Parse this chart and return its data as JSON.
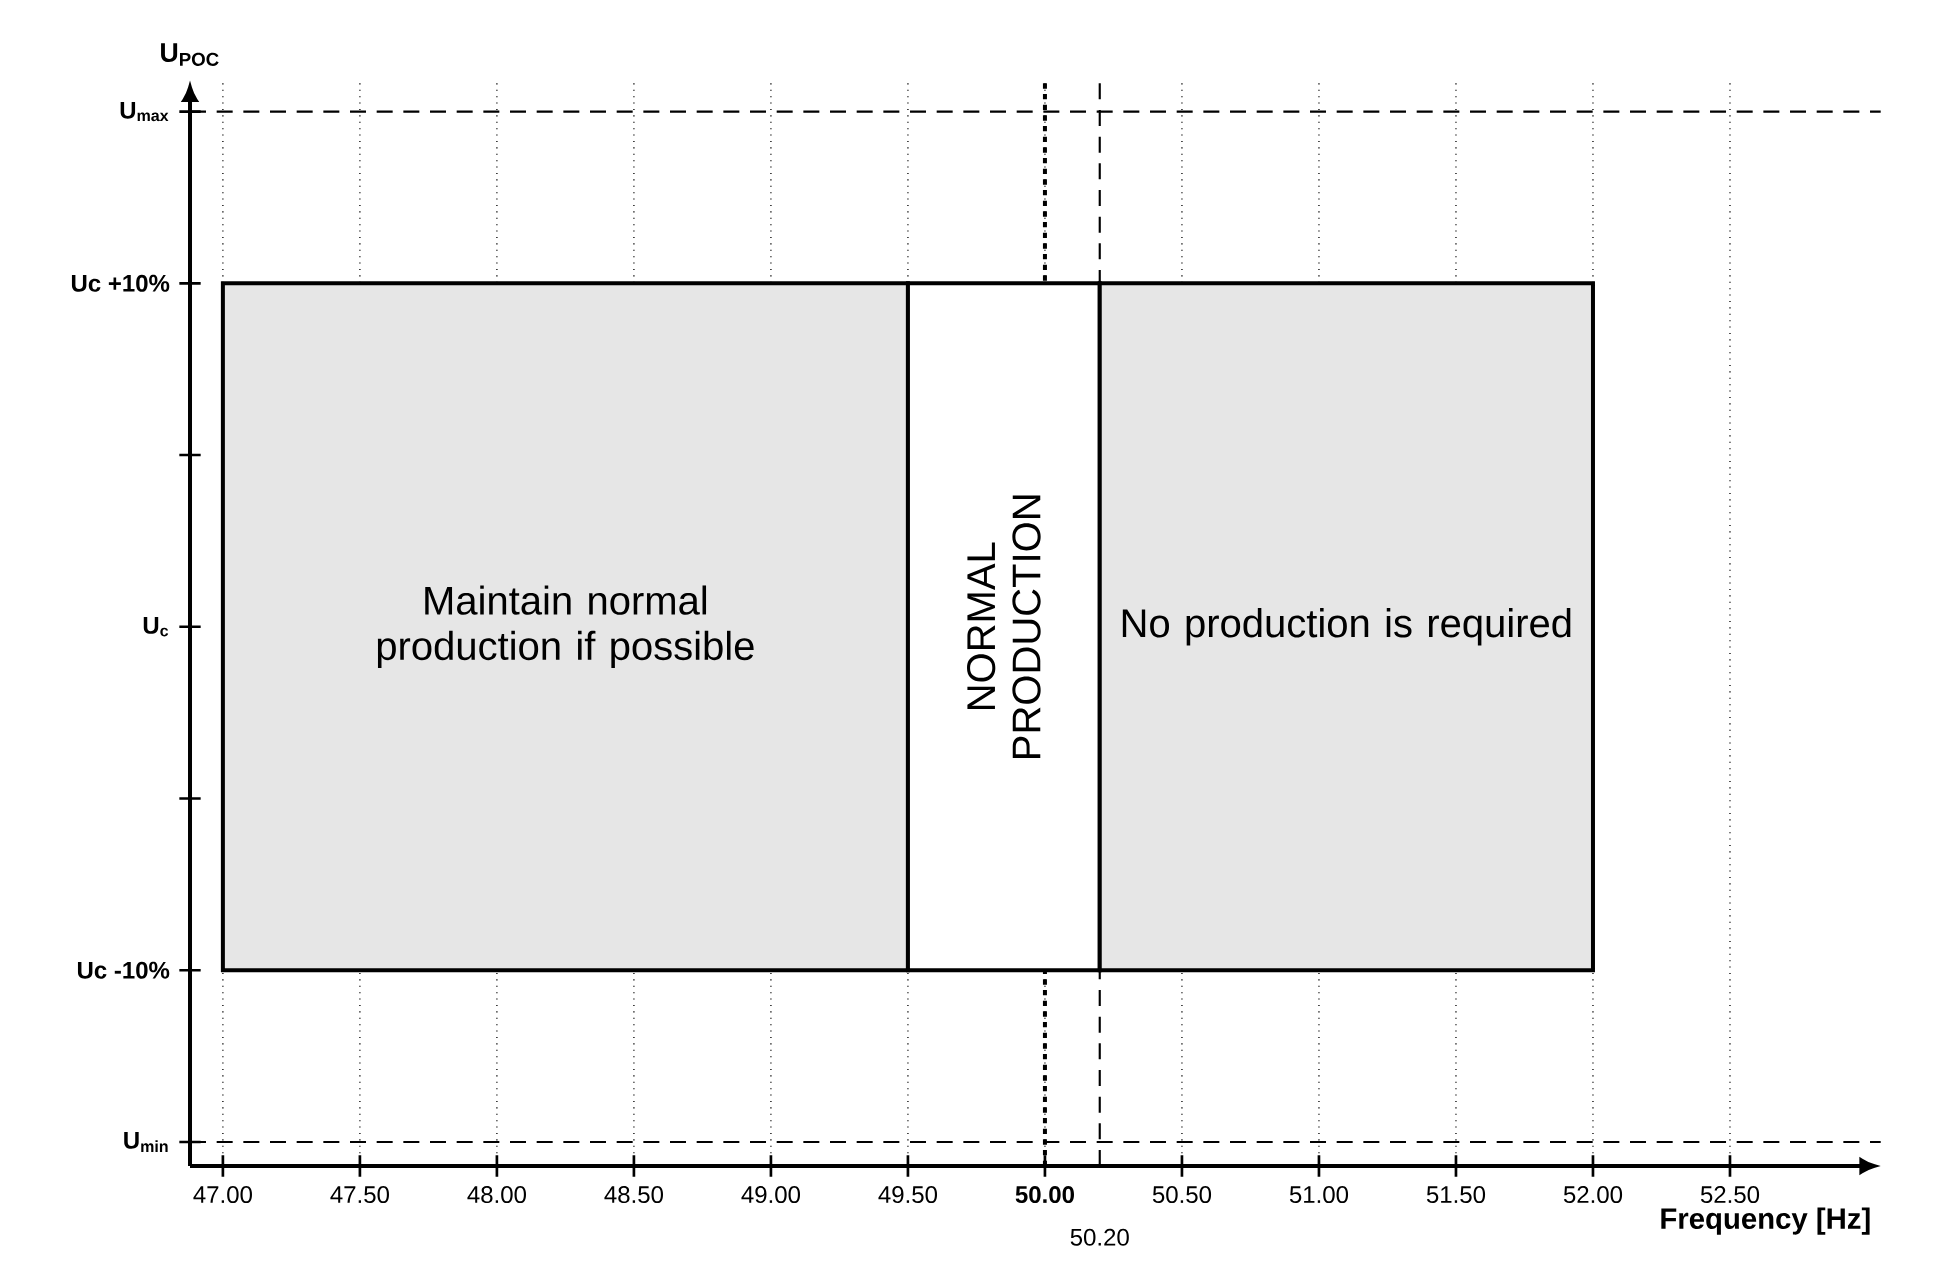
{
  "chart_data": {
    "type": "area",
    "xlabel": "Frequency [Hz]",
    "ylabel": "U$_{POC}$",
    "xlim": [
      46.88,
      53.05
    ],
    "ylim": [
      -15.7,
      15.9
    ],
    "xticks": [
      {
        "value": 47,
        "label": "47.00"
      },
      {
        "value": 47.5,
        "label": "47.50"
      },
      {
        "value": 48,
        "label": "48.00"
      },
      {
        "value": 48.5,
        "label": "48.50"
      },
      {
        "value": 49,
        "label": "49.00"
      },
      {
        "value": 49.5,
        "label": "49.50"
      },
      {
        "value": 50,
        "label": "**50.00**"
      },
      {
        "value": 50.5,
        "label": "50.50"
      },
      {
        "value": 51,
        "label": "51.00"
      },
      {
        "value": 51.5,
        "label": "51.50"
      },
      {
        "value": 52,
        "label": "52.00"
      },
      {
        "value": 52.5,
        "label": "52.50"
      }
    ],
    "yticks": [
      {
        "value": -15,
        "label": "U$_{min}$"
      },
      {
        "value": -10,
        "label": "Uc -10%"
      },
      {
        "value": -5,
        "label": null
      },
      {
        "value": 0,
        "label": "U$_{c}$"
      },
      {
        "value": 5,
        "label": null
      },
      {
        "value": 10,
        "label": "Uc +10%"
      },
      {
        "value": 15,
        "label": "U$_{max}$"
      }
    ],
    "grid": "x",
    "series": [
      {
        "name": "Maintain normal production if possible",
        "color": "#e6e6e6",
        "x": [
          47,
          47,
          49.5,
          49.5
        ],
        "values": [
          -10,
          10,
          10,
          -10
        ]
      },
      {
        "name": "NORMAL PRODUCTION",
        "color": "#ffffff",
        "x": [
          49.5,
          49.5,
          50.2,
          50.2
        ],
        "values": [
          -10,
          10,
          10,
          -10
        ]
      },
      {
        "name": "No production is required",
        "color": "#e6e6e6",
        "x": [
          50.2,
          50.2,
          52,
          52
        ],
        "values": [
          -10,
          10,
          10,
          -10
        ]
      }
    ],
    "ref_lines": [
      {
        "axis": "y",
        "value": 15,
        "line_style": "dashed"
      },
      {
        "axis": "y",
        "value": -15,
        "line_style": "dashed"
      },
      {
        "axis": "x",
        "value": 50,
        "line_style": "dotted"
      },
      {
        "axis": "x",
        "value": 50.2,
        "label": "50.20",
        "line_style": "dashed"
      }
    ]
  }
}
